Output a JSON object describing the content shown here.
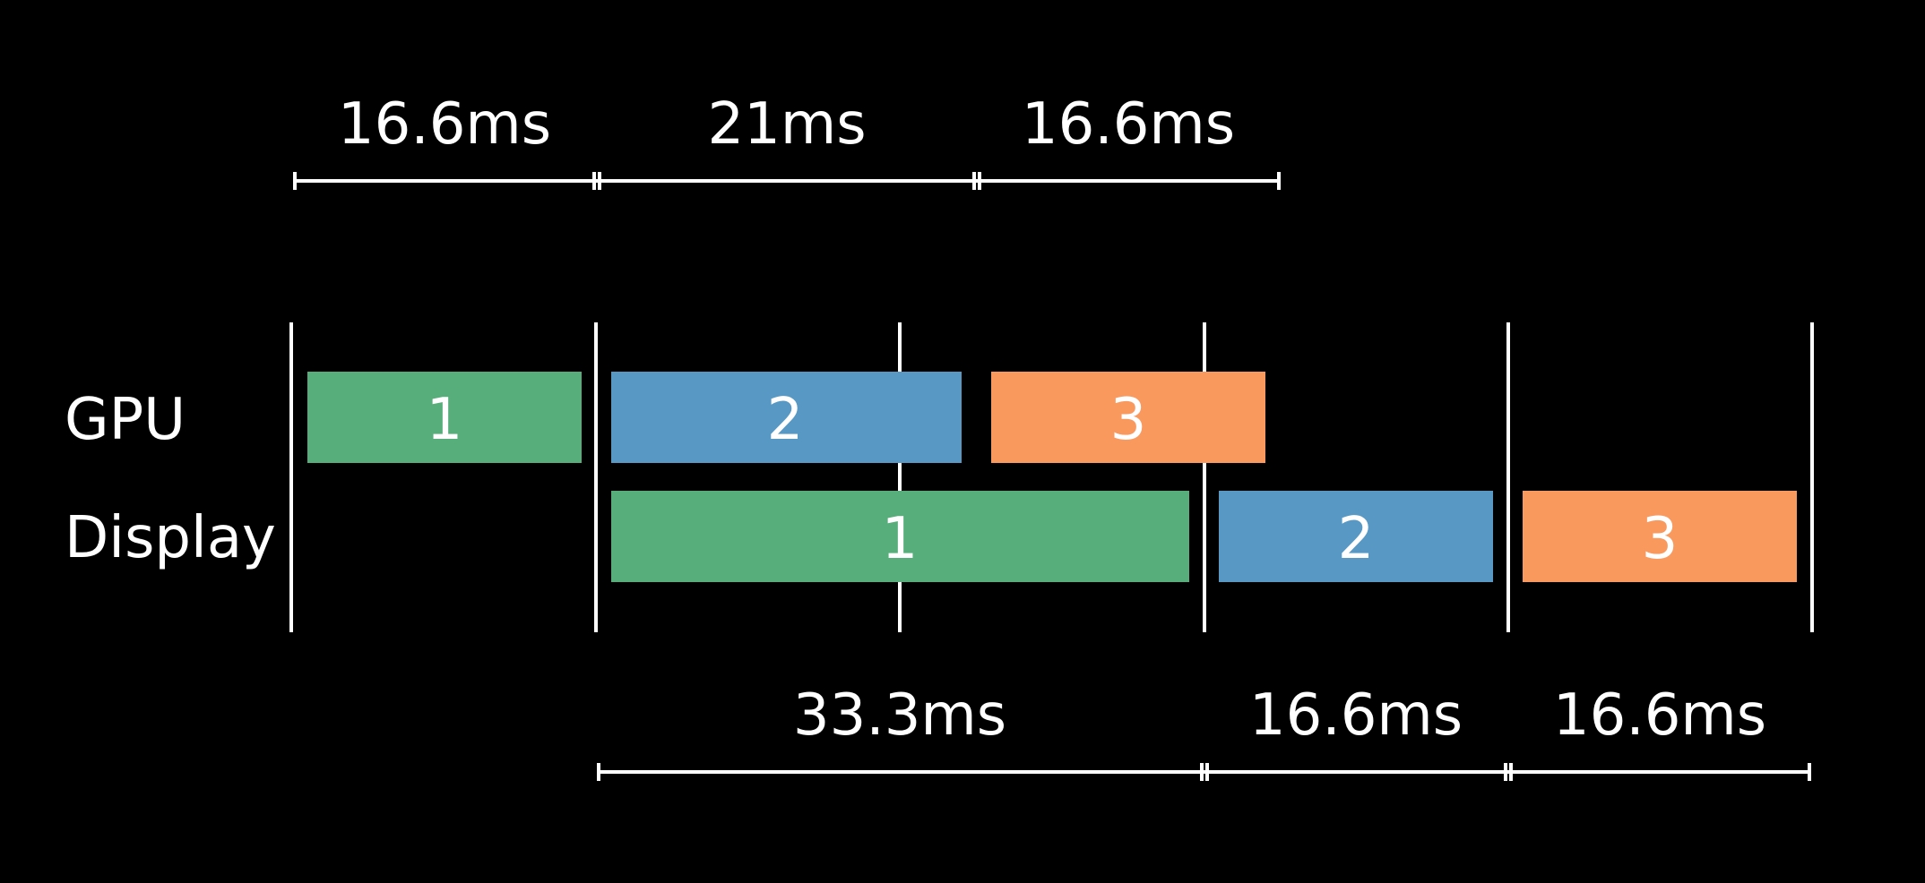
{
  "colors": {
    "background": "#000000",
    "line": "#ffffff",
    "text": "#ffffff",
    "frame_1": "#57ae7b",
    "frame_2": "#5799c4",
    "frame_3": "#f9995e"
  },
  "rows": {
    "gpu": "GPU",
    "display": "Display"
  },
  "top_durations": [
    "16.6ms",
    "21ms",
    "16.6ms"
  ],
  "bottom_durations": [
    "33.3ms",
    "16.6ms",
    "16.6ms"
  ],
  "gpu_frames": [
    {
      "label": "1",
      "color": "frame_1"
    },
    {
      "label": "2",
      "color": "frame_2"
    },
    {
      "label": "3",
      "color": "frame_3"
    }
  ],
  "display_frames": [
    {
      "label": "1",
      "color": "frame_1"
    },
    {
      "label": "2",
      "color": "frame_2"
    },
    {
      "label": "3",
      "color": "frame_3"
    }
  ]
}
